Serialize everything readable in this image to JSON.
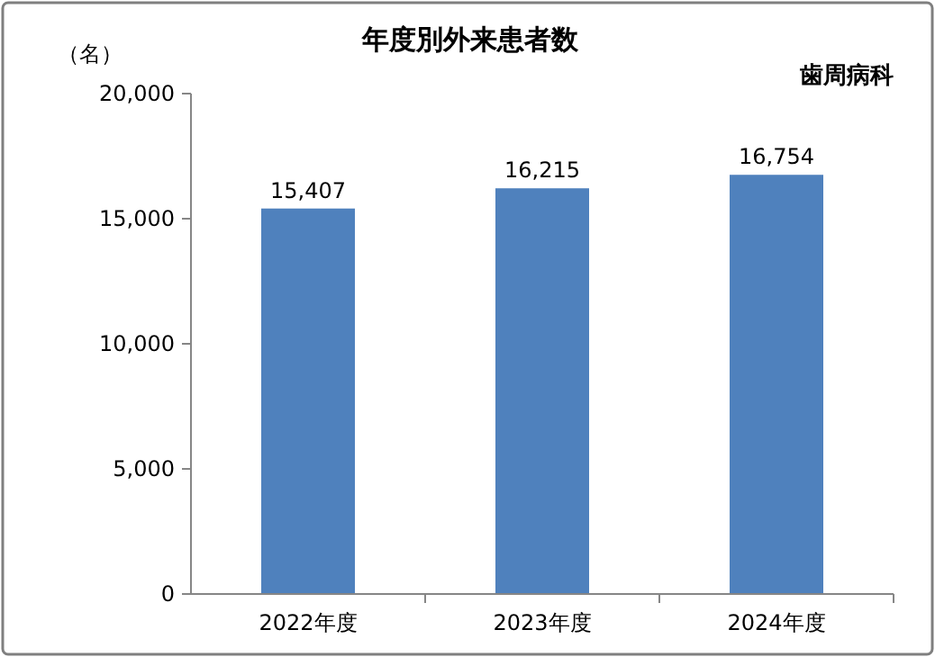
{
  "chart_data": {
    "type": "bar",
    "title": "年度別外来患者数",
    "ylabel": "（名）",
    "annotations": [
      "歯周病科"
    ],
    "categories": [
      "2022年度",
      "2023年度",
      "2024年度"
    ],
    "values": [
      15407,
      16215,
      16754
    ],
    "value_labels": [
      "15,407",
      "16,215",
      "16,754"
    ],
    "color": "#4f81bd",
    "ylim": [
      0,
      20000
    ],
    "yticks": [
      {
        "value": 0,
        "label": "0"
      },
      {
        "value": 5000,
        "label": "5,000"
      },
      {
        "value": 10000,
        "label": "10,000"
      },
      {
        "value": 15000,
        "label": "15,000"
      },
      {
        "value": 20000,
        "label": "20,000"
      }
    ],
    "grid": false
  }
}
